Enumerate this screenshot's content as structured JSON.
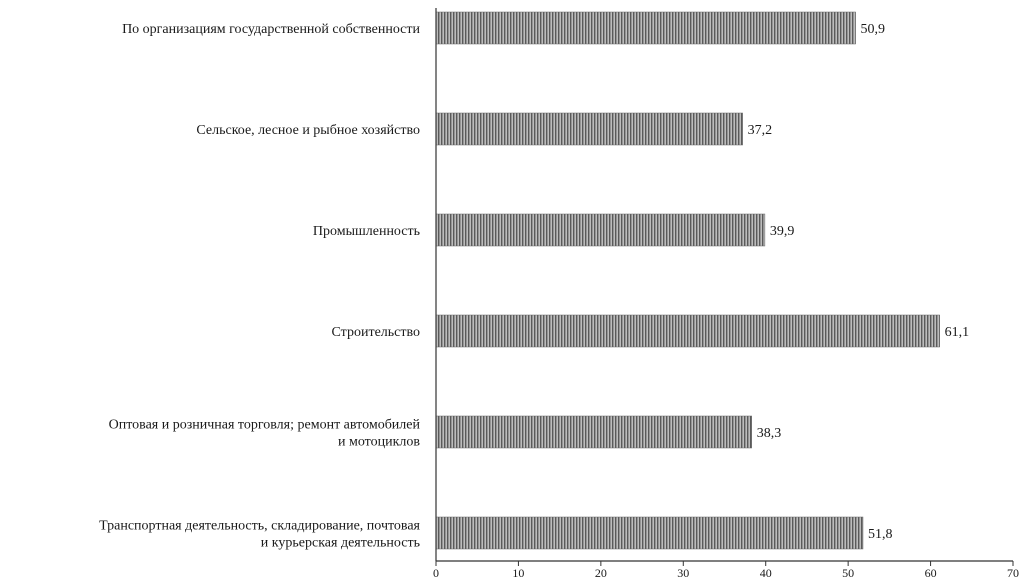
{
  "chart_data": {
    "type": "bar",
    "orientation": "horizontal",
    "categories": [
      [
        "По организациям государственной собственности"
      ],
      [
        "Сельское, лесное и рыбное хозяйство"
      ],
      [
        "Промышленность"
      ],
      [
        "Строительство"
      ],
      [
        "Оптовая и розничная торговля; ремонт автомобилей",
        "и мотоциклов"
      ],
      [
        "Транспортная деятельность, складирование, почтовая",
        "и курьерская деятельность"
      ]
    ],
    "values": [
      50.9,
      37.2,
      39.9,
      61.1,
      38.3,
      51.8
    ],
    "value_labels": [
      "50,9",
      "37,2",
      "39,9",
      "61,1",
      "38,3",
      "51,8"
    ],
    "xlim": [
      0,
      70
    ],
    "xticks": [
      0,
      10,
      20,
      30,
      40,
      50,
      60,
      70
    ],
    "grid": false,
    "bar_color": "#8c8c8c"
  }
}
